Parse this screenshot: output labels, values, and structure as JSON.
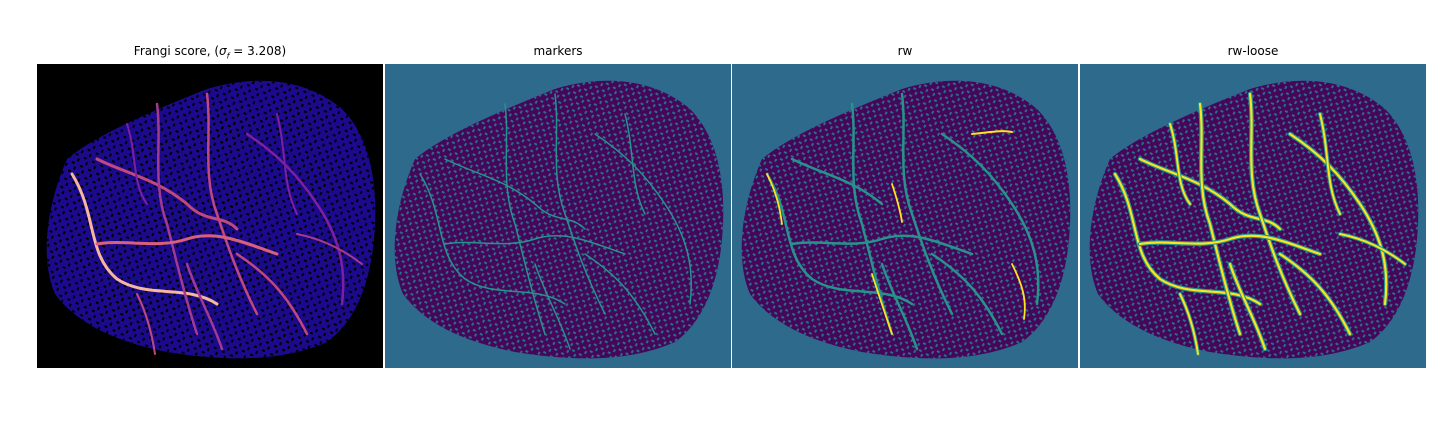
{
  "panels": [
    {
      "title_prefix": "Frangi score, (",
      "title_sigma": "σ",
      "title_sub": "f",
      "title_suffix": " = 3.208)",
      "colormap": "magma"
    },
    {
      "title": "markers",
      "colormap": "viridis"
    },
    {
      "title": "rw",
      "colormap": "viridis"
    },
    {
      "title": "rw-loose",
      "colormap": "viridis"
    }
  ],
  "colors": {
    "frangi_background": "#000000",
    "frangi_tissue": "#1c0a8c",
    "frangi_vessel_low": "#7d1fa0",
    "frangi_vessel_mid": "#c0487e",
    "frangi_vessel_high": "#f7b79d",
    "label_background": "#2d6a8c",
    "label_tissue": "#45075a",
    "label_marker": "#27938a",
    "label_vessel": "#fbe521"
  }
}
